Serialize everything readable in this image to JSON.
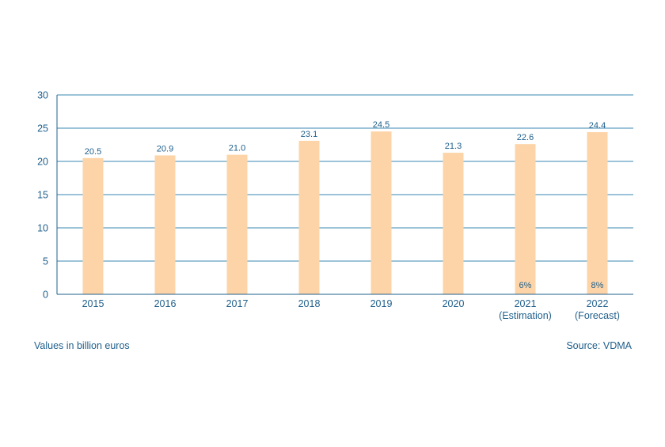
{
  "colors": {
    "bar": "#fdd4a8",
    "axis": "#1f5f8b",
    "grid": "#3a87b0",
    "text": "#1f5f8b"
  },
  "footer": {
    "units": "Values in billion euros",
    "source": "Source: VDMA"
  },
  "chart_data": {
    "type": "bar",
    "categories": [
      "2015",
      "2016",
      "2017",
      "2018",
      "2019",
      "2020",
      "2021",
      "2022"
    ],
    "category_sublabels": [
      "",
      "",
      "",
      "",
      "",
      "",
      "(Estimation)",
      "(Forecast)"
    ],
    "values": [
      20.5,
      20.9,
      21.0,
      23.1,
      24.5,
      21.3,
      22.6,
      24.4
    ],
    "value_labels": [
      "20.5",
      "20.9",
      "21.0",
      "23.1",
      "24.5",
      "21.3",
      "22.6",
      "24.4"
    ],
    "bar_annotations": [
      "",
      "",
      "",
      "",
      "",
      "",
      "6%",
      "8%"
    ],
    "yticks": [
      0,
      5,
      10,
      15,
      20,
      25,
      30
    ],
    "ylim": [
      0,
      30
    ],
    "grid": true,
    "title": "",
    "xlabel": "",
    "ylabel": ""
  }
}
